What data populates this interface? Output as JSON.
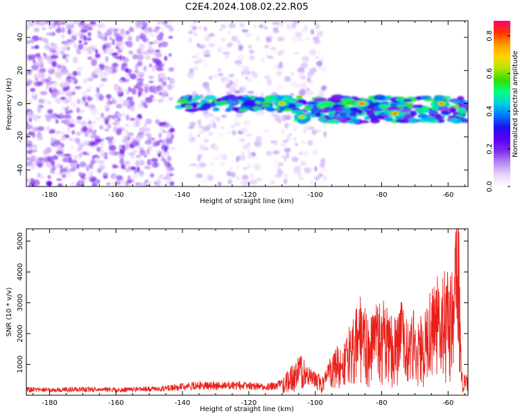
{
  "title": "C2E4.2024.108.02.22.R05",
  "colors": {
    "snr_line": "#e8201a",
    "colorbar": [
      "#ffffff",
      "#e8d4fb",
      "#b78bf4",
      "#7f2cf1",
      "#5a00f0",
      "#1e10f0",
      "#0077ff",
      "#00cfe0",
      "#00ff7f",
      "#33dd00",
      "#b5e600",
      "#ffd400",
      "#ff9900",
      "#ff3300",
      "#ff0070"
    ]
  },
  "chart_data": [
    {
      "type": "heatmap",
      "xlabel": "Height of straight line (km)",
      "ylabel": "Frequency (Hz)",
      "xlim": [
        -187,
        -54
      ],
      "ylim": [
        -50,
        50
      ],
      "xticks": [
        -180,
        -160,
        -140,
        -120,
        -100,
        -80,
        -60
      ],
      "yticks": [
        -40,
        -20,
        0,
        20,
        40
      ],
      "colorbar": {
        "label": "Normalized spectral amplitude",
        "range": [
          0,
          0.88
        ],
        "ticks": [
          0.0,
          0.2,
          0.4,
          0.6,
          0.8
        ]
      },
      "features": [
        {
          "x_range": [
            -187,
            -143
          ],
          "freq_range": [
            -50,
            50
          ],
          "amplitude": 0.1
        },
        {
          "x_range": [
            -138,
            -97
          ],
          "freq_range": [
            -50,
            50
          ],
          "amplitude": 0.06
        },
        {
          "x_range": [
            -141,
            -55
          ],
          "freq_center": 0,
          "amplitude": 0.45
        },
        {
          "x_range": [
            -106,
            -55
          ],
          "freq_center": -7,
          "amplitude": 0.4
        },
        {
          "x": -110,
          "freq": 0,
          "amplitude": 0.75
        },
        {
          "x": -104,
          "freq": -8,
          "amplitude": 0.72
        },
        {
          "x": -86,
          "freq": 0,
          "amplitude": 0.85
        },
        {
          "x": -76,
          "freq": -6,
          "amplitude": 0.82
        },
        {
          "x": -62,
          "freq": 0,
          "amplitude": 0.78
        }
      ]
    },
    {
      "type": "line",
      "xlabel": "Height of straight line (km)",
      "ylabel": "SNR (10 * v/v)",
      "xlim": [
        -187,
        -54
      ],
      "ylim": [
        0,
        5400
      ],
      "xticks": [
        -180,
        -160,
        -140,
        -120,
        -100,
        -80,
        -60
      ],
      "yticks": [
        1000,
        2000,
        3000,
        4000,
        5000
      ],
      "series": [
        {
          "x": [
            -187,
            -180,
            -170,
            -160,
            -150,
            -145,
            -140,
            -135,
            -130,
            -125,
            -120,
            -115,
            -110,
            -106,
            -104,
            -102,
            -100,
            -98,
            -96,
            -94,
            -92,
            -90,
            -88,
            -86,
            -84,
            -82,
            -80,
            -78,
            -76,
            -74,
            -72,
            -70,
            -68,
            -66,
            -64,
            -62,
            -60,
            -58,
            -57,
            -56,
            -54
          ],
          "values": [
            180,
            170,
            190,
            175,
            200,
            210,
            280,
            320,
            300,
            310,
            300,
            260,
            350,
            700,
            850,
            600,
            500,
            400,
            650,
            1100,
            900,
            1350,
            1800,
            2200,
            1500,
            1900,
            2050,
            1700,
            1600,
            1950,
            1500,
            1800,
            1600,
            2000,
            2300,
            2600,
            2500,
            2800,
            4800,
            500,
            400
          ]
        }
      ]
    }
  ]
}
